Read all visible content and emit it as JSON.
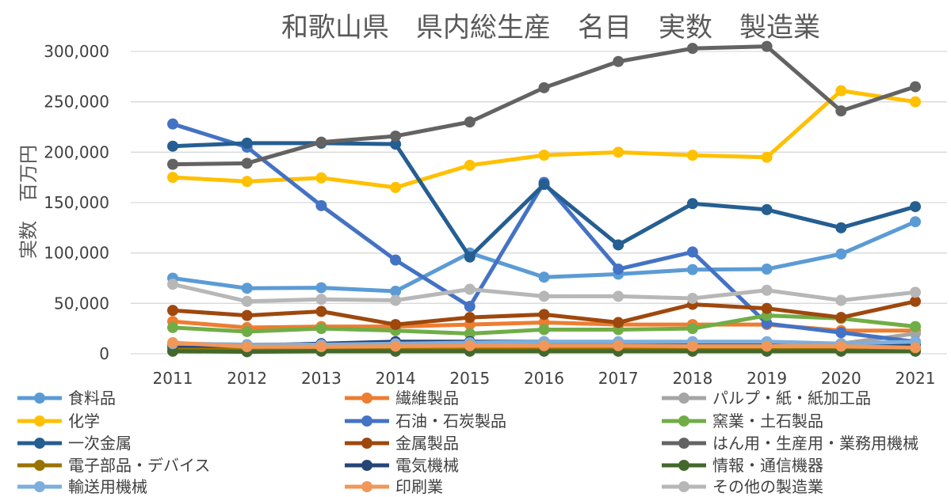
{
  "chart_data": {
    "type": "line",
    "title": "和歌山県　県内総生産　名目　実数　製造業",
    "ylabel": "実数　百万円",
    "xlabel": "",
    "categories": [
      "2011",
      "2012",
      "2013",
      "2014",
      "2015",
      "2016",
      "2017",
      "2018",
      "2019",
      "2020",
      "2021"
    ],
    "ylim": [
      0,
      300000
    ],
    "yticks": [
      0,
      50000,
      100000,
      150000,
      200000,
      250000,
      300000
    ],
    "ytick_labels": [
      "0",
      "50,000",
      "100,000",
      "150,000",
      "200,000",
      "250,000",
      "300,000"
    ],
    "grid": true,
    "legend_position": "bottom",
    "series": [
      {
        "name": "食料品",
        "color": "#5b9bd5",
        "values": [
          75000,
          65000,
          65500,
          62000,
          100000,
          76000,
          79000,
          83500,
          84000,
          99000,
          131000
        ]
      },
      {
        "name": "繊維製品",
        "color": "#ed7d31",
        "values": [
          32000,
          26000,
          27000,
          27000,
          29000,
          31000,
          29000,
          29000,
          29000,
          23000,
          23000
        ]
      },
      {
        "name": "パルプ・紙・紙加工品",
        "color": "#a5a5a5",
        "values": [
          10000,
          9000,
          9500,
          9500,
          9500,
          10000,
          10000,
          10000,
          10000,
          10000,
          20000
        ]
      },
      {
        "name": "化学",
        "color": "#ffc000",
        "values": [
          175000,
          171000,
          174500,
          165000,
          187000,
          197000,
          200000,
          197000,
          195000,
          261000,
          250000
        ]
      },
      {
        "name": "石油・石炭製品",
        "color": "#4472c4",
        "values": [
          228000,
          205000,
          147000,
          93000,
          47000,
          170000,
          84000,
          101000,
          30000,
          21000,
          12000
        ]
      },
      {
        "name": "窯業・土石製品",
        "color": "#70ad47",
        "values": [
          26000,
          22000,
          25000,
          23000,
          20000,
          24000,
          24000,
          25000,
          38000,
          35000,
          27000
        ]
      },
      {
        "name": "一次金属",
        "color": "#255e91",
        "values": [
          206000,
          209000,
          209000,
          208000,
          96000,
          168000,
          108000,
          149000,
          143000,
          125000,
          146000
        ]
      },
      {
        "name": "金属製品",
        "color": "#9e480e",
        "values": [
          43000,
          38000,
          42000,
          29000,
          36000,
          39000,
          31000,
          49000,
          45000,
          36000,
          52000
        ]
      },
      {
        "name": "はん用・生産用・業務用機械",
        "color": "#636363",
        "values": [
          188000,
          189000,
          210000,
          216000,
          230000,
          264000,
          290000,
          303000,
          305000,
          241000,
          265000
        ]
      },
      {
        "name": "電子部品・デバイス",
        "color": "#997300",
        "values": [
          5000,
          4500,
          5000,
          5000,
          5000,
          5500,
          5500,
          5500,
          5500,
          5000,
          5000
        ]
      },
      {
        "name": "電気機械",
        "color": "#264478",
        "values": [
          8000,
          8000,
          10000,
          12000,
          12000,
          12000,
          11000,
          11000,
          11000,
          10000,
          9000
        ]
      },
      {
        "name": "情報・通信機器",
        "color": "#43682b",
        "values": [
          2500,
          2000,
          2500,
          2500,
          2500,
          2500,
          2500,
          2500,
          2500,
          2500,
          2500
        ]
      },
      {
        "name": "輸送用機械",
        "color": "#7cafdd",
        "values": [
          10000,
          9000,
          9000,
          10000,
          11000,
          12000,
          12000,
          12000,
          12000,
          10000,
          12000
        ]
      },
      {
        "name": "印刷業",
        "color": "#f1975a",
        "values": [
          11000,
          7000,
          7000,
          7500,
          8000,
          8000,
          8000,
          7500,
          7500,
          7500,
          6000
        ]
      },
      {
        "name": "その他の製造業",
        "color": "#b7b7b7",
        "values": [
          69000,
          52000,
          54000,
          53000,
          64000,
          57000,
          57000,
          55000,
          63000,
          53000,
          61000
        ]
      }
    ]
  }
}
